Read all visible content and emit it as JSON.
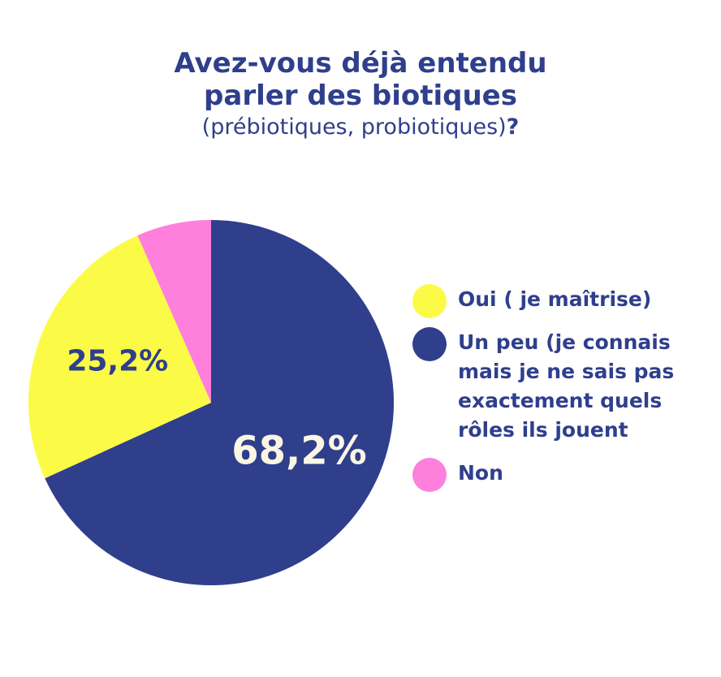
{
  "title": {
    "line1": "Avez-vous déjà entendu",
    "line2": "parler des biotiques",
    "line3": "(prébiotiques, probiotiques)",
    "qmark": "?"
  },
  "colors": {
    "text": "#2f3f8c",
    "oui": "#fbfb47",
    "un_peu": "#2f3f8c",
    "non": "#ff7fdc",
    "label_light": "#fbf6e3"
  },
  "chart_data": {
    "type": "pie",
    "title": "Avez-vous déjà entendu parler des biotiques (prébiotiques, probiotiques)?",
    "slices": [
      {
        "label": "Un peu (je connais mais je ne sais pas exactement quels rôles ils jouent",
        "value": 68.2,
        "value_label": "68,2%",
        "color": "#2f3f8c"
      },
      {
        "label": "Oui ( je maîtrise)",
        "value": 25.2,
        "value_label": "25,2%",
        "color": "#fbfb47"
      },
      {
        "label": "Non",
        "value": 6.6,
        "value_label": "",
        "color": "#ff7fdc"
      }
    ],
    "start": "top",
    "direction": "clockwise",
    "legend_position": "right"
  },
  "legend": [
    {
      "label": "Oui ( je maîtrise)",
      "color": "#fbfb47"
    },
    {
      "label": "Un peu (je connais\nmais je ne sais pas\nexactement quels\nrôles ils jouent",
      "color": "#2f3f8c"
    },
    {
      "label": "Non",
      "color": "#ff7fdc"
    }
  ]
}
